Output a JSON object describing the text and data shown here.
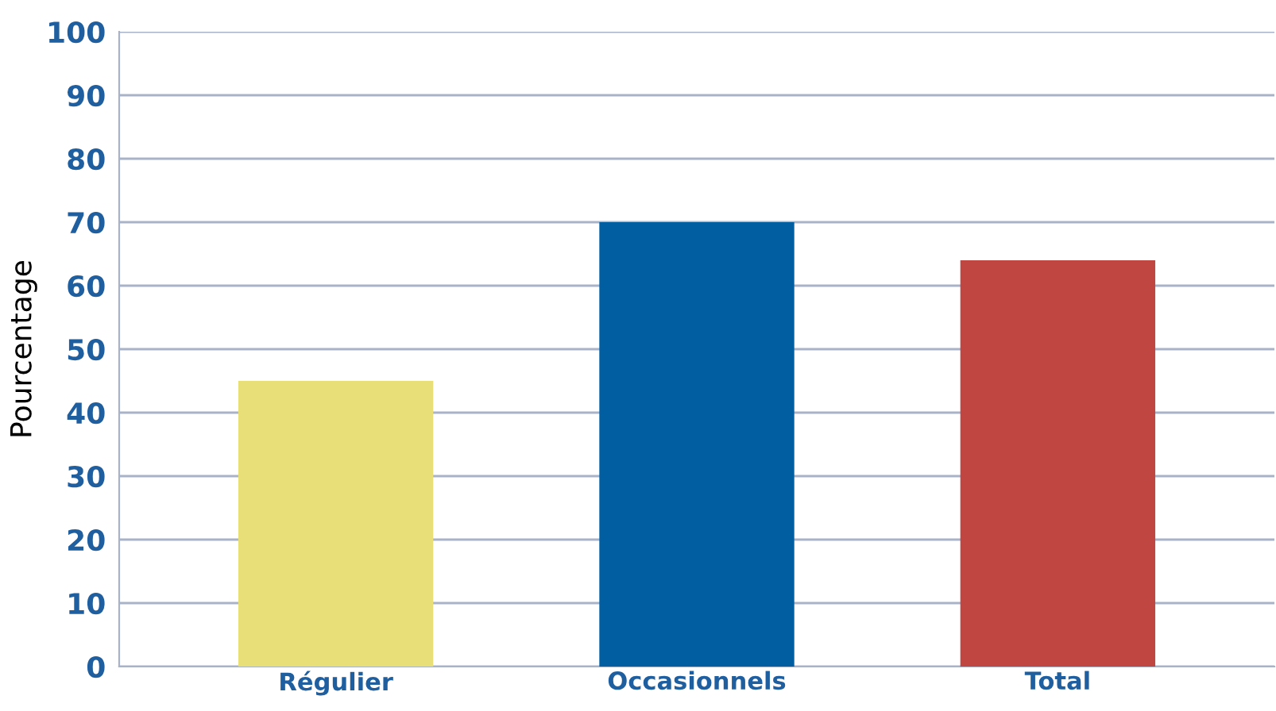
{
  "chart_data": {
    "type": "bar",
    "ylabel": "Pourcentage",
    "categories": [
      "Régulier",
      "Occasionnels",
      "Total"
    ],
    "values": [
      45,
      70,
      64
    ],
    "colors": [
      "#e8df78",
      "#005ea1",
      "#c04642"
    ],
    "ylim": [
      0,
      100
    ],
    "yticks": [
      0,
      10,
      20,
      30,
      40,
      50,
      60,
      70,
      80,
      90,
      100
    ],
    "grid": "y"
  }
}
